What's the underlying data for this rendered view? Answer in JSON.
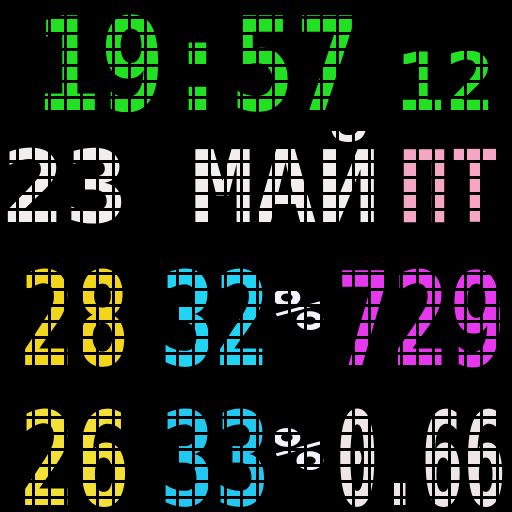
{
  "rows": [
    {
      "segments": [
        {
          "text": "19:57",
          "color": "#22e022"
        },
        {
          "text": "12",
          "color": "#22e022"
        }
      ]
    },
    {
      "segments": [
        {
          "text": "23 МАЙ",
          "color": "#f2eeee"
        },
        {
          "text": "ПТ",
          "color": "#f4a6c4"
        }
      ]
    },
    {
      "segments": [
        {
          "text": "28",
          "color": "#f2d61e"
        },
        {
          "text": "32",
          "color": "#22d4f4"
        },
        {
          "text": "%",
          "color": "#f2f2ff"
        },
        {
          "text": "729",
          "color": "#e638ec"
        }
      ]
    },
    {
      "segments": [
        {
          "text": "26",
          "color": "#f2e036"
        },
        {
          "text": "33",
          "color": "#22c8f0"
        },
        {
          "text": "%",
          "color": "#f2f2ff"
        },
        {
          "text": "0.66",
          "color": "#eee6e6"
        }
      ]
    }
  ]
}
